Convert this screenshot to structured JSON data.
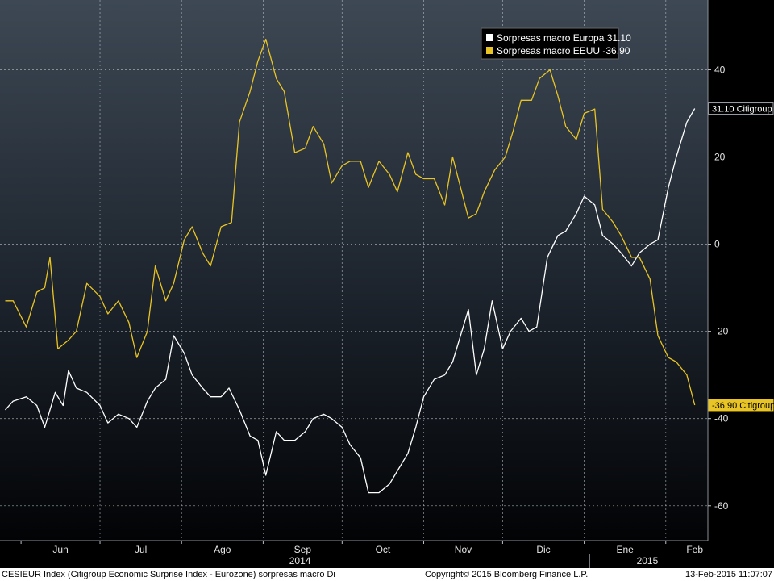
{
  "chart_data": {
    "type": "line",
    "title": "",
    "xlabel": "",
    "ylabel": "",
    "ylim": [
      -68,
      56
    ],
    "y_ticks": [
      40,
      20,
      0,
      -20,
      -40,
      -60
    ],
    "y_tick_labels": [
      "40",
      "20",
      "0",
      "-20",
      "-40",
      "-60"
    ],
    "x_months": [
      "Jun",
      "Jul",
      "Ago",
      "Sep",
      "Oct",
      "Nov",
      "Dic",
      "Ene",
      "Feb"
    ],
    "x_years": [
      "2014",
      "2015"
    ],
    "grid": true,
    "legend_position": "top-right",
    "series": [
      {
        "name": "Sorpresas macro Europa",
        "legend_value": "31.10",
        "last_value_tag": "31.10 Citigroup",
        "color": "#ffffff",
        "points": [
          [
            "2014-05-26",
            -38
          ],
          [
            "2014-05-29",
            -36
          ],
          [
            "2014-06-03",
            -35
          ],
          [
            "2014-06-07",
            -37
          ],
          [
            "2014-06-10",
            -42
          ],
          [
            "2014-06-14",
            -34
          ],
          [
            "2014-06-17",
            -37
          ],
          [
            "2014-06-19",
            -29
          ],
          [
            "2014-06-22",
            -33
          ],
          [
            "2014-06-26",
            -34
          ],
          [
            "2014-07-01",
            -37
          ],
          [
            "2014-07-04",
            -41
          ],
          [
            "2014-07-08",
            -39
          ],
          [
            "2014-07-12",
            -40
          ],
          [
            "2014-07-15",
            -42
          ],
          [
            "2014-07-19",
            -36
          ],
          [
            "2014-07-22",
            -33
          ],
          [
            "2014-07-26",
            -31
          ],
          [
            "2014-07-29",
            -21
          ],
          [
            "2014-08-02",
            -25
          ],
          [
            "2014-08-05",
            -30
          ],
          [
            "2014-08-09",
            -33
          ],
          [
            "2014-08-12",
            -35
          ],
          [
            "2014-08-16",
            -35
          ],
          [
            "2014-08-19",
            -33
          ],
          [
            "2014-08-23",
            -38
          ],
          [
            "2014-08-27",
            -44
          ],
          [
            "2014-08-30",
            -45
          ],
          [
            "2014-09-02",
            -53
          ],
          [
            "2014-09-06",
            -43
          ],
          [
            "2014-09-09",
            -45
          ],
          [
            "2014-09-13",
            -45
          ],
          [
            "2014-09-17",
            -43
          ],
          [
            "2014-09-20",
            -40
          ],
          [
            "2014-09-24",
            -39
          ],
          [
            "2014-09-27",
            -40
          ],
          [
            "2014-10-01",
            -42
          ],
          [
            "2014-10-04",
            -46
          ],
          [
            "2014-10-08",
            -49
          ],
          [
            "2014-10-11",
            -57
          ],
          [
            "2014-10-15",
            -57
          ],
          [
            "2014-10-19",
            -55
          ],
          [
            "2014-10-22",
            -52
          ],
          [
            "2014-10-26",
            -48
          ],
          [
            "2014-10-29",
            -42
          ],
          [
            "2014-11-01",
            -35
          ],
          [
            "2014-11-05",
            -31
          ],
          [
            "2014-11-09",
            -30
          ],
          [
            "2014-11-12",
            -27
          ],
          [
            "2014-11-15",
            -21
          ],
          [
            "2014-11-18",
            -15
          ],
          [
            "2014-11-21",
            -30
          ],
          [
            "2014-11-24",
            -24
          ],
          [
            "2014-11-27",
            -13
          ],
          [
            "2014-12-01",
            -24
          ],
          [
            "2014-12-04",
            -20
          ],
          [
            "2014-12-08",
            -17
          ],
          [
            "2014-12-11",
            -20
          ],
          [
            "2014-12-14",
            -19
          ],
          [
            "2014-12-18",
            -3
          ],
          [
            "2014-12-22",
            2
          ],
          [
            "2014-12-25",
            3
          ],
          [
            "2014-12-29",
            7
          ],
          [
            "2015-01-01",
            11
          ],
          [
            "2015-01-05",
            9
          ],
          [
            "2015-01-08",
            2
          ],
          [
            "2015-01-12",
            0
          ],
          [
            "2015-01-15",
            -2
          ],
          [
            "2015-01-19",
            -5
          ],
          [
            "2015-01-22",
            -2
          ],
          [
            "2015-01-26",
            0
          ],
          [
            "2015-01-29",
            1
          ],
          [
            "2015-02-02",
            13
          ],
          [
            "2015-02-05",
            20
          ],
          [
            "2015-02-09",
            28
          ],
          [
            "2015-02-12",
            31.1
          ]
        ]
      },
      {
        "name": "Sorpresas macro EEUU",
        "legend_value": "-36.90",
        "last_value_tag": "-36.90 Citigroup",
        "color": "#e8c424",
        "points": [
          [
            "2014-05-26",
            -13
          ],
          [
            "2014-05-29",
            -13
          ],
          [
            "2014-06-03",
            -19
          ],
          [
            "2014-06-07",
            -11
          ],
          [
            "2014-06-10",
            -10
          ],
          [
            "2014-06-12",
            -3
          ],
          [
            "2014-06-15",
            -24
          ],
          [
            "2014-06-19",
            -22
          ],
          [
            "2014-06-22",
            -20
          ],
          [
            "2014-06-26",
            -9
          ],
          [
            "2014-07-01",
            -12
          ],
          [
            "2014-07-04",
            -16
          ],
          [
            "2014-07-08",
            -13
          ],
          [
            "2014-07-12",
            -18
          ],
          [
            "2014-07-15",
            -26
          ],
          [
            "2014-07-19",
            -20
          ],
          [
            "2014-07-22",
            -5
          ],
          [
            "2014-07-26",
            -13
          ],
          [
            "2014-07-29",
            -9
          ],
          [
            "2014-08-02",
            1
          ],
          [
            "2014-08-05",
            4
          ],
          [
            "2014-08-09",
            -2
          ],
          [
            "2014-08-12",
            -5
          ],
          [
            "2014-08-16",
            4
          ],
          [
            "2014-08-20",
            5
          ],
          [
            "2014-08-23",
            28
          ],
          [
            "2014-08-27",
            35
          ],
          [
            "2014-08-30",
            42
          ],
          [
            "2014-09-02",
            47
          ],
          [
            "2014-09-06",
            38
          ],
          [
            "2014-09-09",
            35
          ],
          [
            "2014-09-13",
            21
          ],
          [
            "2014-09-17",
            22
          ],
          [
            "2014-09-20",
            27
          ],
          [
            "2014-09-24",
            23
          ],
          [
            "2014-09-27",
            14
          ],
          [
            "2014-10-01",
            18
          ],
          [
            "2014-10-04",
            19
          ],
          [
            "2014-10-08",
            19
          ],
          [
            "2014-10-11",
            13
          ],
          [
            "2014-10-15",
            19
          ],
          [
            "2014-10-19",
            16
          ],
          [
            "2014-10-22",
            12
          ],
          [
            "2014-10-26",
            21
          ],
          [
            "2014-10-29",
            16
          ],
          [
            "2014-11-01",
            15
          ],
          [
            "2014-11-05",
            15
          ],
          [
            "2014-11-09",
            9
          ],
          [
            "2014-11-12",
            20
          ],
          [
            "2014-11-15",
            13
          ],
          [
            "2014-11-18",
            6
          ],
          [
            "2014-11-21",
            7
          ],
          [
            "2014-11-24",
            12
          ],
          [
            "2014-11-28",
            17
          ],
          [
            "2014-12-02",
            20
          ],
          [
            "2014-12-05",
            26
          ],
          [
            "2014-12-08",
            33
          ],
          [
            "2014-12-12",
            33
          ],
          [
            "2014-12-15",
            38
          ],
          [
            "2014-12-19",
            40
          ],
          [
            "2014-12-22",
            34
          ],
          [
            "2014-12-25",
            27
          ],
          [
            "2014-12-29",
            24
          ],
          [
            "2015-01-01",
            30
          ],
          [
            "2015-01-05",
            31
          ],
          [
            "2015-01-08",
            8
          ],
          [
            "2015-01-12",
            5
          ],
          [
            "2015-01-15",
            2
          ],
          [
            "2015-01-19",
            -3
          ],
          [
            "2015-01-22",
            -3
          ],
          [
            "2015-01-26",
            -8
          ],
          [
            "2015-01-29",
            -21
          ],
          [
            "2015-02-02",
            -26
          ],
          [
            "2015-02-05",
            -27
          ],
          [
            "2015-02-09",
            -30
          ],
          [
            "2015-02-12",
            -36.9
          ]
        ]
      }
    ]
  },
  "footer": {
    "left": "CESIEUR Index (Citigroup Economic Surprise Index - Eurozone) sorpresas macro  Di",
    "middle": "Copyright© 2015 Bloomberg Finance L.P.",
    "right": "13-Feb-2015 11:07:07"
  }
}
